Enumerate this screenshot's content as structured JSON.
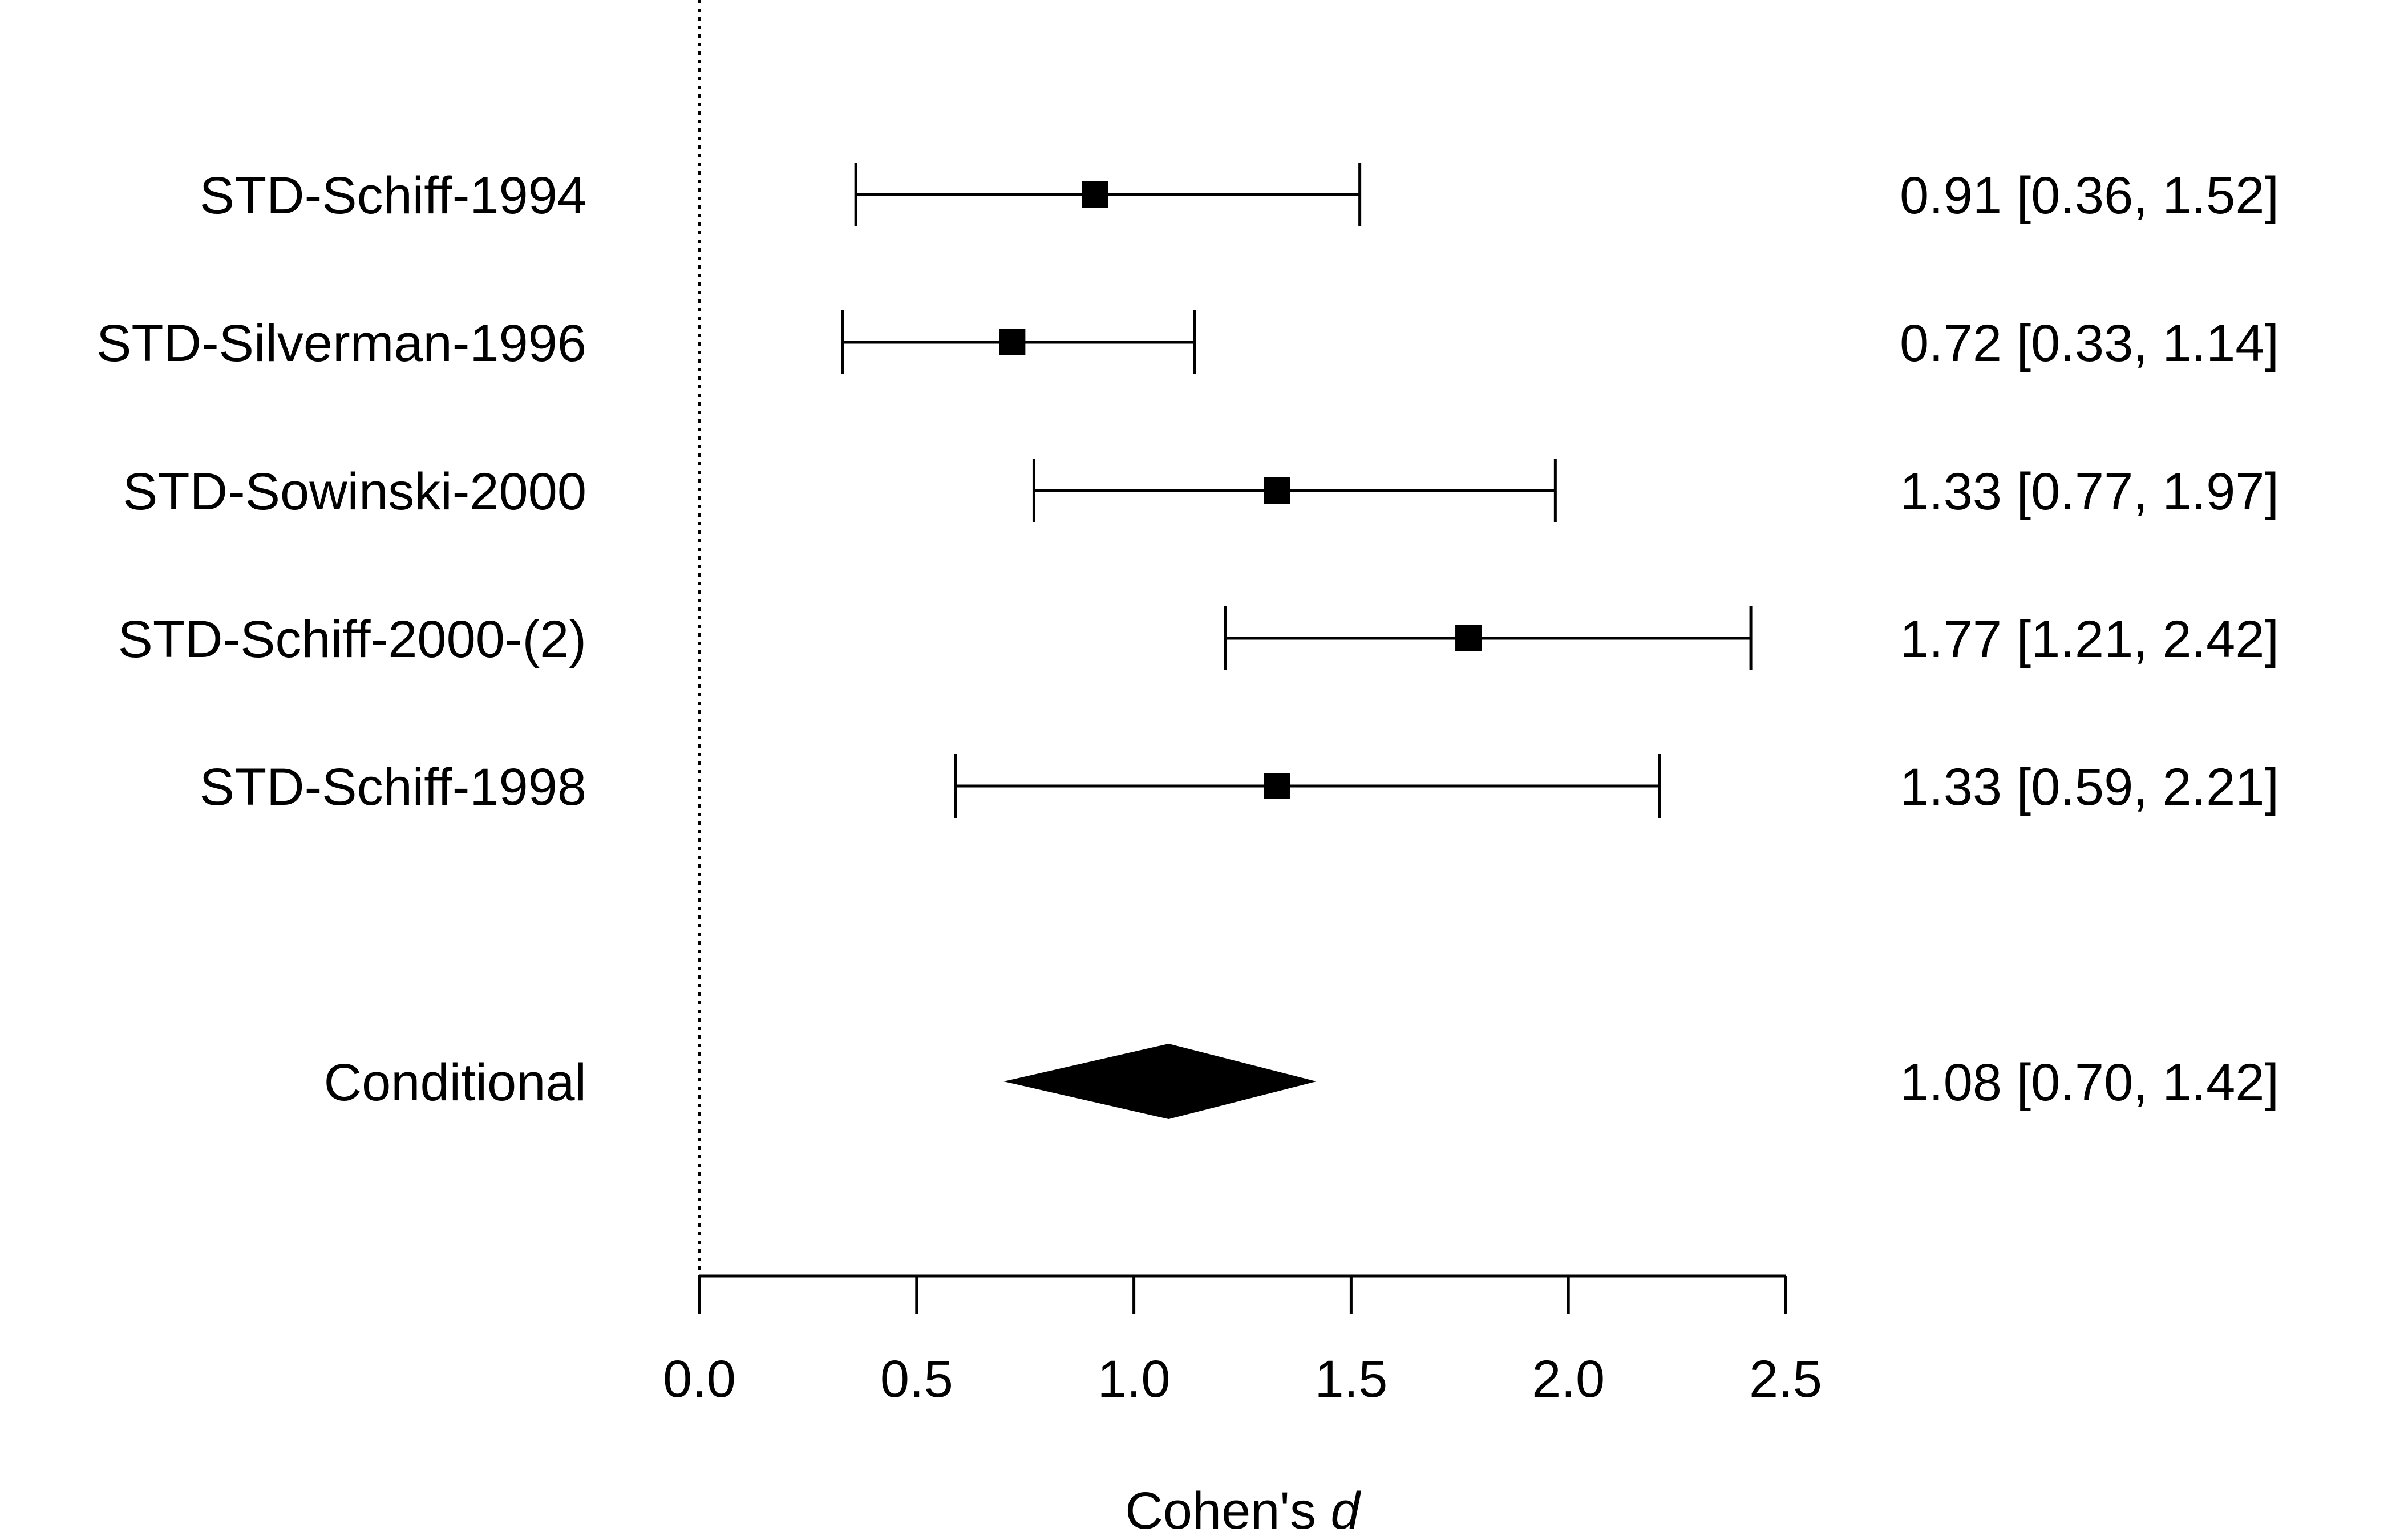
{
  "chart_data": {
    "type": "forest",
    "xlabel": "Cohen's",
    "xlabel_italic": "d",
    "xlim": [
      0,
      2.5
    ],
    "xticks": [
      "0.0",
      "0.5",
      "1.0",
      "1.5",
      "2.0",
      "2.5"
    ],
    "reference_line": 0,
    "studies": [
      {
        "label": "STD-Schiff-1994",
        "estimate": 0.91,
        "lower": 0.36,
        "upper": 1.52,
        "text": "0.91 [0.36, 1.52]"
      },
      {
        "label": "STD-Silverman-1996",
        "estimate": 0.72,
        "lower": 0.33,
        "upper": 1.14,
        "text": "0.72 [0.33, 1.14]"
      },
      {
        "label": "STD-Sowinski-2000",
        "estimate": 1.33,
        "lower": 0.77,
        "upper": 1.97,
        "text": "1.33 [0.77, 1.97]"
      },
      {
        "label": "STD-Schiff-2000-(2)",
        "estimate": 1.77,
        "lower": 1.21,
        "upper": 2.42,
        "text": "1.77 [1.21, 2.42]"
      },
      {
        "label": "STD-Schiff-1998",
        "estimate": 1.33,
        "lower": 0.59,
        "upper": 2.21,
        "text": "1.33 [0.59, 2.21]"
      }
    ],
    "summary": {
      "label": "Conditional",
      "estimate": 1.08,
      "lower": 0.7,
      "upper": 1.42,
      "text": "1.08 [0.70, 1.42]"
    }
  }
}
